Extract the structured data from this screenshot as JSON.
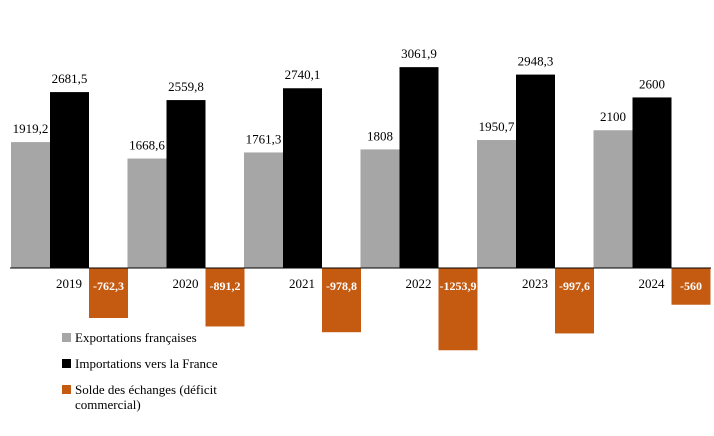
{
  "chart_data": {
    "type": "bar",
    "title": "",
    "xlabel": "",
    "ylabel": "",
    "categories": [
      "2019",
      "2020",
      "2021",
      "2022",
      "2023",
      "2024"
    ],
    "series": [
      {
        "name": "Exportations françaises",
        "color": "#a6a6a6",
        "values": [
          1919.2,
          1668.6,
          1761.3,
          1808,
          1950.7,
          2100
        ],
        "labels": [
          "1919,2",
          "1668,6",
          "1761,3",
          "1808",
          "1950,7",
          "2100"
        ]
      },
      {
        "name": "Importations vers la France",
        "color": "#000000",
        "values": [
          2681.5,
          2559.8,
          2740.1,
          3061.9,
          2948.3,
          2600
        ],
        "labels": [
          "2681,5",
          "2559,8",
          "2740,1",
          "3061,9",
          "2948,3",
          "2600"
        ]
      },
      {
        "name": "Solde des échanges (déficit commercial)",
        "color": "#c55a11",
        "values": [
          -762.3,
          -891.2,
          -978.8,
          -1253.9,
          -997.6,
          -560
        ],
        "labels": [
          "-762,3",
          "-891,2",
          "-978,8",
          "-1253,9",
          "-997,6",
          "-560"
        ]
      }
    ],
    "ylim": [
      -1400,
      3200
    ],
    "legend_position": "bottom-left",
    "grid": false
  }
}
